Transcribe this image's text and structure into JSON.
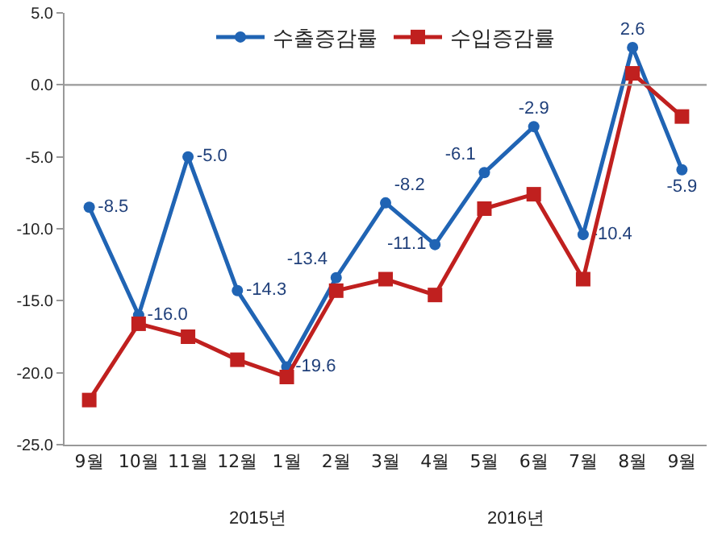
{
  "chart_data": {
    "type": "line",
    "categories": [
      "9월",
      "10월",
      "11월",
      "12월",
      "1월",
      "2월",
      "3월",
      "4월",
      "5월",
      "6월",
      "7월",
      "8월",
      "9월"
    ],
    "series": [
      {
        "name": "수출증감률",
        "color": "#2064b4",
        "marker": "circle",
        "values": [
          -8.5,
          -16.0,
          -5.0,
          -14.3,
          -19.6,
          -13.4,
          -8.2,
          -11.1,
          -6.1,
          -2.9,
          -10.4,
          2.6,
          -5.9
        ],
        "value_labels": [
          "-8.5",
          "-16.0",
          "-5.0",
          "-14.3",
          "-19.6",
          "-13.4",
          "-8.2",
          "-11.1",
          "-6.1",
          "-2.9",
          "-10.4",
          "2.6",
          "-5.9"
        ]
      },
      {
        "name": "수입증감률",
        "color": "#c0201f",
        "marker": "square",
        "values": [
          -21.9,
          -16.6,
          -17.5,
          -19.1,
          -20.3,
          -14.3,
          -13.5,
          -14.6,
          -8.6,
          -7.6,
          -13.5,
          0.8,
          -2.2
        ]
      }
    ],
    "ylim": [
      -25,
      5
    ],
    "yticks": [
      {
        "value": 5,
        "label": "5.0"
      },
      {
        "value": 0,
        "label": "0.0"
      },
      {
        "value": -5,
        "label": "-5.0"
      },
      {
        "value": -10,
        "label": "-10.0"
      },
      {
        "value": -15,
        "label": "-15.0"
      },
      {
        "value": -20,
        "label": "-20.0"
      },
      {
        "value": -25,
        "label": "-25.0"
      }
    ],
    "annotations": [
      "2015년",
      "2016년"
    ],
    "ref_lines": [
      {
        "axis": "y",
        "value": 0
      }
    ],
    "grid": false,
    "legend": "top",
    "line_style": "solid"
  }
}
